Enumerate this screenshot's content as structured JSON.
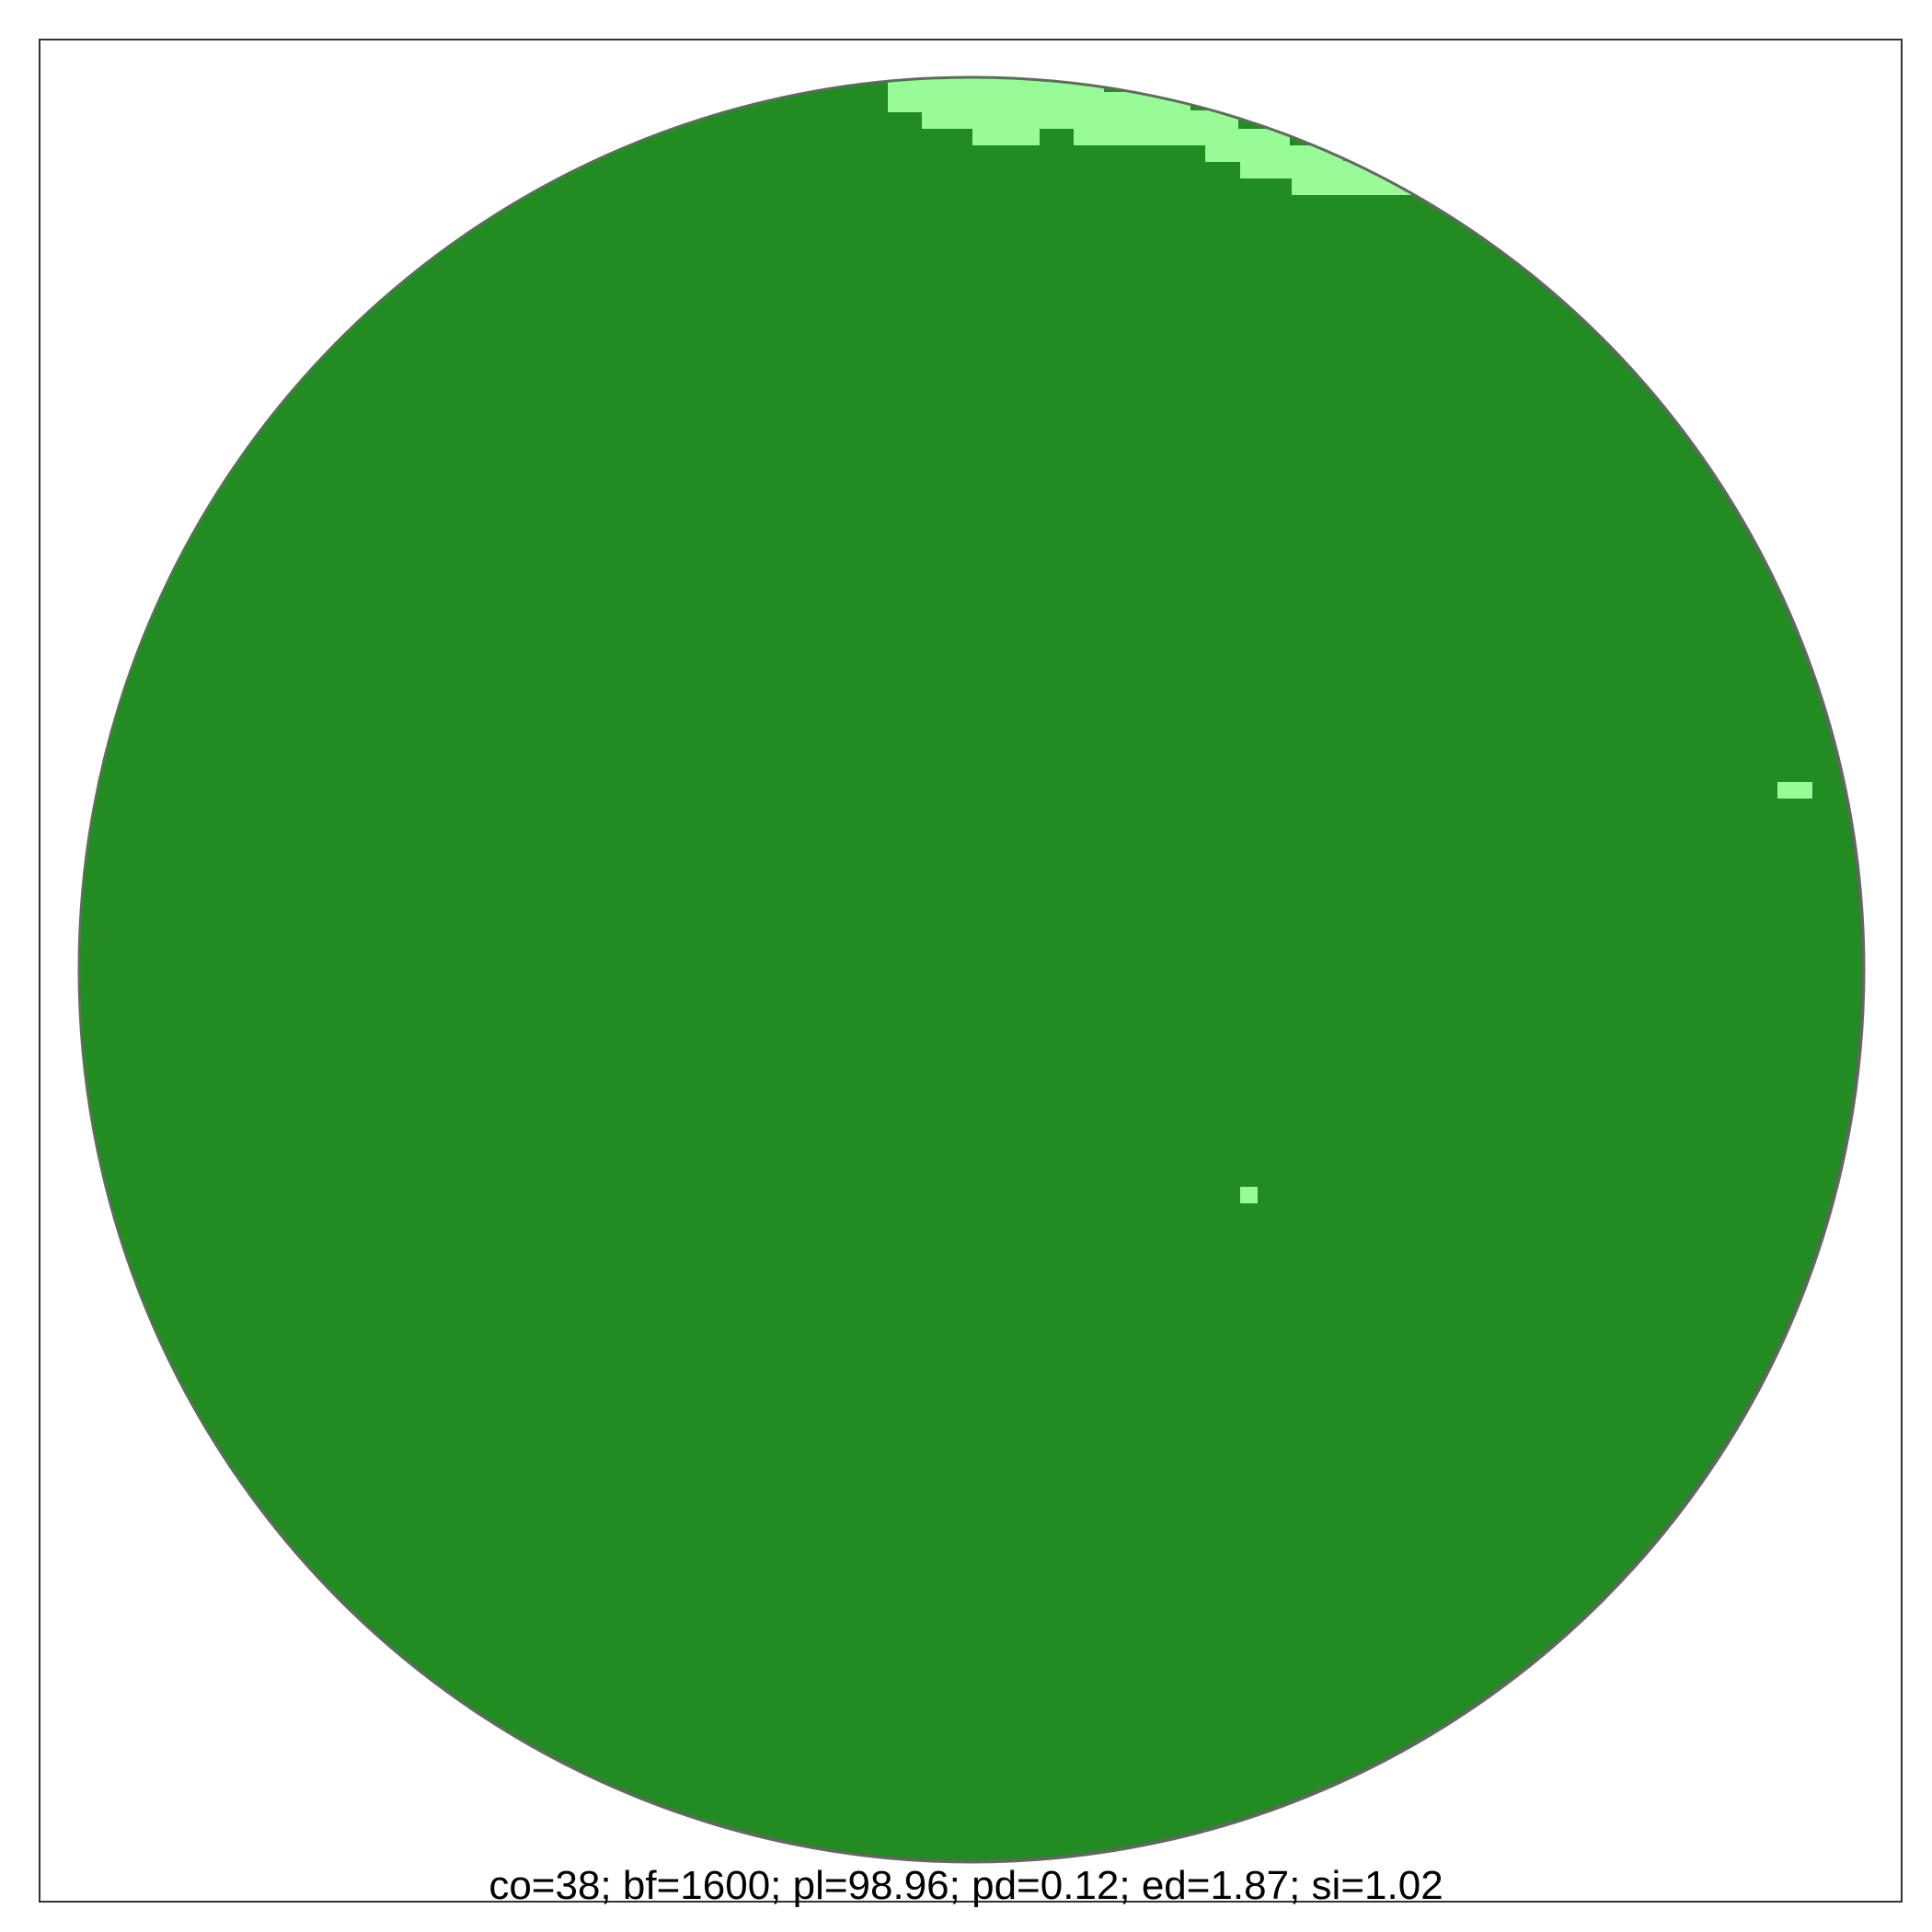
{
  "caption": "co=38; bf=1600; pl=98.96; pd=0.12; ed=1.87; si=1.02",
  "colors": {
    "fill_dark": "#228B22",
    "fill_light": "#98FB98",
    "circle_outline": "#666666",
    "frame_border": "#333333",
    "background": "#FFFFFF"
  },
  "legend_text": []
}
